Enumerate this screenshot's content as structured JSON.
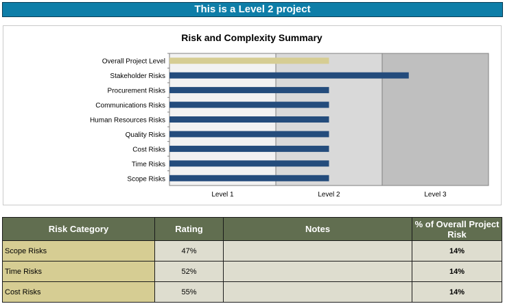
{
  "banner": {
    "text": "This is a Level 2 project"
  },
  "chart_data": {
    "type": "bar",
    "orientation": "horizontal",
    "title": "Risk and Complexity Summary",
    "categories": [
      "Overall Project Level",
      "Stakeholder Risks",
      "Procurement Risks",
      "Communications Risks",
      "Human Resources Risks",
      "Quality Risks",
      "Cost Risks",
      "Time Risks",
      "Scope Risks"
    ],
    "values": [
      1.5,
      2.25,
      1.5,
      1.5,
      1.5,
      1.5,
      1.5,
      1.5,
      1.5
    ],
    "xlim": [
      0,
      3
    ],
    "x_ticks": [
      "Level 1",
      "Level 2",
      "Level 3"
    ],
    "colors": {
      "highlight": "#d6cd93",
      "bar": "#244c7c",
      "band1": "#f2f2f2",
      "band2": "#d9d9d9",
      "band3": "#bfbfbf"
    },
    "highlight_category": "Overall Project Level",
    "grid": false
  },
  "table": {
    "headers": [
      "Risk Category",
      "Rating",
      "Notes",
      "% of Overall Project Risk"
    ],
    "rows": [
      {
        "category": "Scope Risks",
        "rating": "47%",
        "notes": "",
        "pct": "14%"
      },
      {
        "category": "Time Risks",
        "rating": "52%",
        "notes": "",
        "pct": "14%"
      },
      {
        "category": "Cost Risks",
        "rating": "55%",
        "notes": "",
        "pct": "14%"
      }
    ]
  }
}
